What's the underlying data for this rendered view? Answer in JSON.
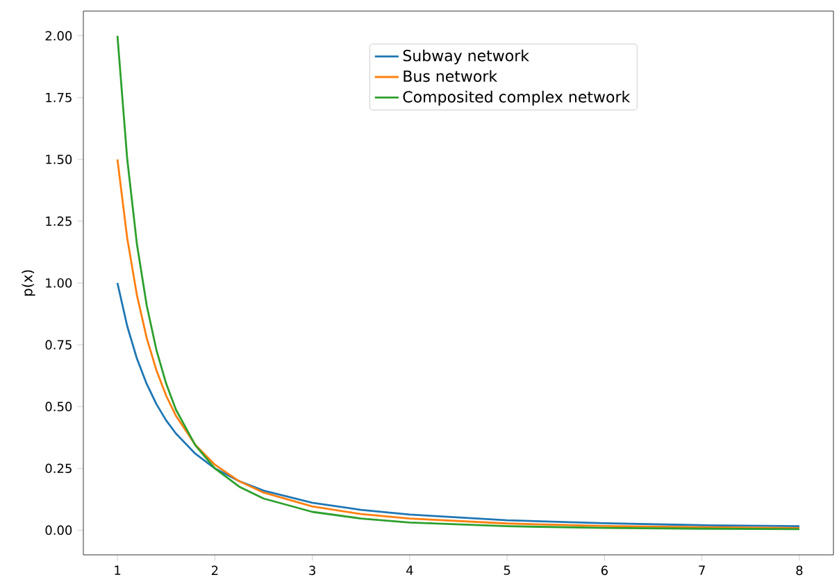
{
  "chart_data": {
    "type": "line",
    "ylabel": "p(x)",
    "legend": "top",
    "x": [
      1,
      1.1,
      1.2,
      1.3,
      1.4,
      1.5,
      1.6,
      1.8,
      2,
      2.25,
      2.5,
      3,
      3.5,
      4,
      5,
      6,
      7,
      8
    ],
    "series": [
      {
        "name": "Subway network",
        "color": "#1f77b4",
        "values": [
          1.0,
          0.826,
          0.694,
          0.592,
          0.51,
          0.444,
          0.391,
          0.309,
          0.25,
          0.198,
          0.16,
          0.111,
          0.082,
          0.063,
          0.04,
          0.028,
          0.02,
          0.016
        ]
      },
      {
        "name": "Bus network",
        "color": "#ff7f0e",
        "values": [
          1.5,
          1.182,
          0.951,
          0.778,
          0.647,
          0.544,
          0.463,
          0.345,
          0.265,
          0.198,
          0.152,
          0.096,
          0.065,
          0.047,
          0.027,
          0.017,
          0.012,
          0.008
        ]
      },
      {
        "name": "Composited complex network",
        "color": "#2ca02c",
        "values": [
          2.0,
          1.503,
          1.157,
          0.91,
          0.729,
          0.593,
          0.488,
          0.343,
          0.25,
          0.176,
          0.128,
          0.074,
          0.047,
          0.031,
          0.016,
          0.009,
          0.006,
          0.004
        ]
      }
    ],
    "xlim": [
      0.65,
      8.35
    ],
    "ylim": [
      -0.1,
      2.1
    ],
    "xticks": [
      1,
      2,
      3,
      4,
      5,
      6,
      7,
      8
    ],
    "yticks": [
      {
        "value": 0,
        "label": "0.00"
      },
      {
        "value": 0.25,
        "label": "0.25"
      },
      {
        "value": 0.5,
        "label": "0.50"
      },
      {
        "value": 0.75,
        "label": "0.75"
      },
      {
        "value": 1.0,
        "label": "1.00"
      },
      {
        "value": 1.25,
        "label": "1.25"
      },
      {
        "value": 1.5,
        "label": "1.50"
      },
      {
        "value": 1.75,
        "label": "1.75"
      },
      {
        "value": 2.0,
        "label": "2.00"
      }
    ]
  }
}
